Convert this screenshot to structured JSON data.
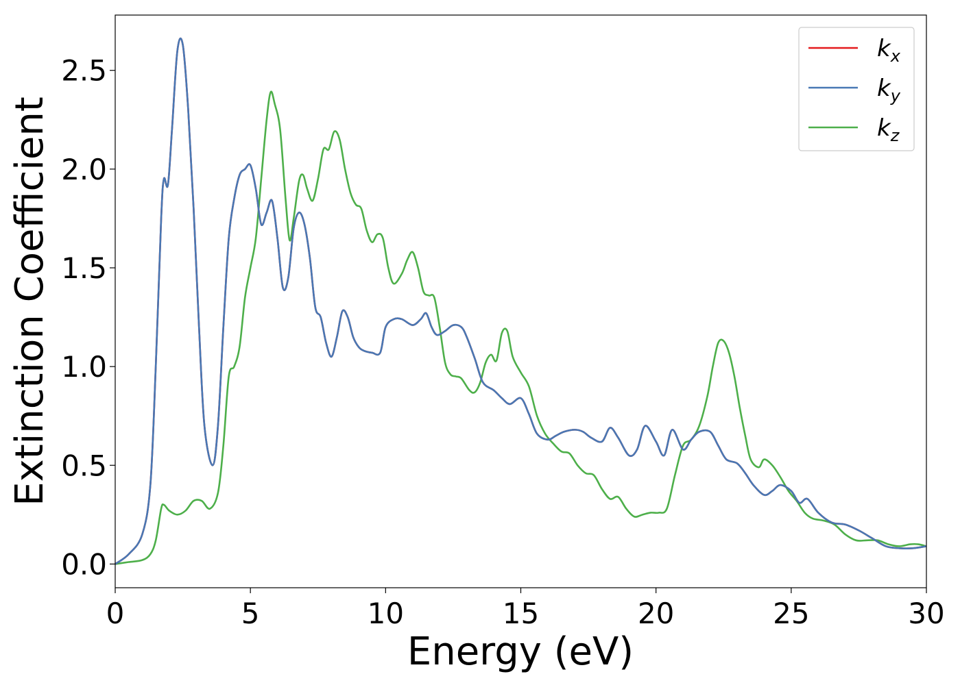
{
  "chart_data": {
    "type": "line",
    "title": "",
    "xlabel": "Energy (eV)",
    "ylabel": "Extinction Coefficient",
    "xlim": [
      0,
      30
    ],
    "ylim": [
      -0.12,
      2.78
    ],
    "xticks": [
      0,
      5,
      10,
      15,
      20,
      25,
      30
    ],
    "yticks": [
      0.0,
      0.5,
      1.0,
      1.5,
      2.0,
      2.5
    ],
    "xtick_labels": [
      "0",
      "5",
      "10",
      "15",
      "20",
      "25",
      "30"
    ],
    "ytick_labels": [
      "0.0",
      "0.5",
      "1.0",
      "1.5",
      "2.0",
      "2.5"
    ],
    "grid": false,
    "legend_position": "top-right",
    "legend_box_color": "#cccccc",
    "series": [
      {
        "name": "k",
        "subscript": "x",
        "color": "#e41a1c",
        "x": [
          0,
          0.5,
          1.0,
          1.3,
          1.5,
          1.7,
          1.8,
          1.95,
          2.1,
          2.3,
          2.5,
          2.7,
          2.9,
          3.1,
          3.3,
          3.6,
          3.8,
          4.0,
          4.2,
          4.4,
          4.6,
          4.8,
          5.0,
          5.2,
          5.4,
          5.6,
          5.8,
          6.0,
          6.2,
          6.4,
          6.6,
          6.8,
          7.0,
          7.2,
          7.4,
          7.6,
          7.8,
          8.0,
          8.2,
          8.4,
          8.6,
          8.8,
          9.0,
          9.2,
          9.5,
          9.8,
          10.0,
          10.3,
          10.6,
          11.0,
          11.3,
          11.5,
          11.7,
          11.9,
          12.2,
          12.5,
          12.8,
          13.0,
          13.3,
          13.6,
          14.0,
          14.3,
          14.6,
          15.0,
          15.3,
          15.6,
          16.0,
          16.3,
          16.6,
          17.0,
          17.3,
          17.6,
          18.0,
          18.3,
          18.6,
          19.0,
          19.3,
          19.6,
          20.0,
          20.3,
          20.6,
          21.0,
          21.3,
          21.6,
          22.0,
          22.3,
          22.6,
          23.0,
          23.3,
          23.6,
          24.0,
          24.3,
          24.6,
          25.0,
          25.3,
          25.6,
          26.0,
          26.5,
          27.0,
          27.5,
          28.0,
          28.5,
          29.0,
          29.5,
          30.0
        ],
        "y": [
          0.0,
          0.05,
          0.15,
          0.4,
          1.0,
          1.75,
          1.95,
          1.92,
          2.2,
          2.6,
          2.63,
          2.3,
          1.8,
          1.2,
          0.7,
          0.5,
          0.7,
          1.2,
          1.65,
          1.85,
          1.97,
          2.0,
          2.02,
          1.9,
          1.72,
          1.78,
          1.84,
          1.65,
          1.4,
          1.45,
          1.7,
          1.78,
          1.72,
          1.55,
          1.3,
          1.25,
          1.12,
          1.05,
          1.15,
          1.28,
          1.25,
          1.15,
          1.1,
          1.08,
          1.07,
          1.07,
          1.2,
          1.24,
          1.24,
          1.21,
          1.24,
          1.27,
          1.2,
          1.16,
          1.18,
          1.21,
          1.2,
          1.15,
          1.04,
          0.92,
          0.88,
          0.84,
          0.81,
          0.84,
          0.76,
          0.66,
          0.63,
          0.65,
          0.67,
          0.68,
          0.67,
          0.64,
          0.62,
          0.69,
          0.64,
          0.55,
          0.58,
          0.7,
          0.62,
          0.55,
          0.68,
          0.58,
          0.63,
          0.67,
          0.67,
          0.6,
          0.53,
          0.51,
          0.46,
          0.4,
          0.35,
          0.37,
          0.4,
          0.37,
          0.31,
          0.33,
          0.26,
          0.21,
          0.2,
          0.17,
          0.13,
          0.09,
          0.08,
          0.08,
          0.09
        ]
      },
      {
        "name": "k",
        "subscript": "y",
        "color": "#4878b4",
        "x": [
          0,
          0.5,
          1.0,
          1.3,
          1.5,
          1.7,
          1.8,
          1.95,
          2.1,
          2.3,
          2.5,
          2.7,
          2.9,
          3.1,
          3.3,
          3.6,
          3.8,
          4.0,
          4.2,
          4.4,
          4.6,
          4.8,
          5.0,
          5.2,
          5.4,
          5.6,
          5.8,
          6.0,
          6.2,
          6.4,
          6.6,
          6.8,
          7.0,
          7.2,
          7.4,
          7.6,
          7.8,
          8.0,
          8.2,
          8.4,
          8.6,
          8.8,
          9.0,
          9.2,
          9.5,
          9.8,
          10.0,
          10.3,
          10.6,
          11.0,
          11.3,
          11.5,
          11.7,
          11.9,
          12.2,
          12.5,
          12.8,
          13.0,
          13.3,
          13.6,
          14.0,
          14.3,
          14.6,
          15.0,
          15.3,
          15.6,
          16.0,
          16.3,
          16.6,
          17.0,
          17.3,
          17.6,
          18.0,
          18.3,
          18.6,
          19.0,
          19.3,
          19.6,
          20.0,
          20.3,
          20.6,
          21.0,
          21.3,
          21.6,
          22.0,
          22.3,
          22.6,
          23.0,
          23.3,
          23.6,
          24.0,
          24.3,
          24.6,
          25.0,
          25.3,
          25.6,
          26.0,
          26.5,
          27.0,
          27.5,
          28.0,
          28.5,
          29.0,
          29.5,
          30.0
        ],
        "y": [
          0.0,
          0.05,
          0.15,
          0.4,
          1.0,
          1.75,
          1.95,
          1.92,
          2.2,
          2.6,
          2.63,
          2.3,
          1.8,
          1.2,
          0.7,
          0.5,
          0.7,
          1.2,
          1.65,
          1.85,
          1.97,
          2.0,
          2.02,
          1.9,
          1.72,
          1.78,
          1.84,
          1.65,
          1.4,
          1.45,
          1.7,
          1.78,
          1.72,
          1.55,
          1.3,
          1.25,
          1.12,
          1.05,
          1.15,
          1.28,
          1.25,
          1.15,
          1.1,
          1.08,
          1.07,
          1.07,
          1.2,
          1.24,
          1.24,
          1.21,
          1.24,
          1.27,
          1.2,
          1.16,
          1.18,
          1.21,
          1.2,
          1.15,
          1.04,
          0.92,
          0.88,
          0.84,
          0.81,
          0.84,
          0.76,
          0.66,
          0.63,
          0.65,
          0.67,
          0.68,
          0.67,
          0.64,
          0.62,
          0.69,
          0.64,
          0.55,
          0.58,
          0.7,
          0.62,
          0.55,
          0.68,
          0.58,
          0.63,
          0.67,
          0.67,
          0.6,
          0.53,
          0.51,
          0.46,
          0.4,
          0.35,
          0.37,
          0.4,
          0.37,
          0.31,
          0.33,
          0.26,
          0.21,
          0.2,
          0.17,
          0.13,
          0.09,
          0.08,
          0.08,
          0.09
        ]
      },
      {
        "name": "k",
        "subscript": "z",
        "color": "#4daf4a",
        "x": [
          0,
          0.5,
          1.0,
          1.3,
          1.5,
          1.7,
          1.8,
          2.0,
          2.3,
          2.6,
          2.9,
          3.2,
          3.5,
          3.8,
          4.0,
          4.2,
          4.4,
          4.6,
          4.8,
          5.0,
          5.2,
          5.4,
          5.6,
          5.75,
          5.9,
          6.1,
          6.3,
          6.45,
          6.6,
          6.8,
          6.95,
          7.1,
          7.3,
          7.5,
          7.7,
          7.9,
          8.1,
          8.3,
          8.5,
          8.7,
          8.9,
          9.1,
          9.3,
          9.5,
          9.7,
          9.9,
          10.1,
          10.3,
          10.6,
          10.8,
          11.0,
          11.2,
          11.4,
          11.6,
          11.8,
          12.0,
          12.2,
          12.4,
          12.6,
          12.8,
          13.1,
          13.3,
          13.5,
          13.7,
          13.9,
          14.1,
          14.3,
          14.5,
          14.7,
          15.0,
          15.3,
          15.6,
          15.9,
          16.2,
          16.5,
          16.8,
          17.1,
          17.4,
          17.7,
          18.0,
          18.3,
          18.6,
          18.9,
          19.2,
          19.5,
          19.8,
          20.1,
          20.4,
          20.7,
          21.0,
          21.3,
          21.6,
          21.9,
          22.1,
          22.3,
          22.5,
          22.7,
          22.9,
          23.1,
          23.3,
          23.5,
          23.8,
          24.0,
          24.3,
          24.6,
          24.9,
          25.2,
          25.5,
          25.8,
          26.2,
          26.6,
          27.0,
          27.4,
          27.8,
          28.2,
          28.6,
          29.0,
          29.4,
          29.7,
          30.0
        ],
        "y": [
          0.0,
          0.01,
          0.02,
          0.05,
          0.12,
          0.28,
          0.3,
          0.27,
          0.25,
          0.27,
          0.32,
          0.32,
          0.28,
          0.36,
          0.6,
          0.95,
          1.0,
          1.1,
          1.35,
          1.5,
          1.65,
          1.95,
          2.25,
          2.39,
          2.33,
          2.2,
          1.85,
          1.64,
          1.75,
          1.94,
          1.97,
          1.9,
          1.84,
          1.95,
          2.1,
          2.1,
          2.19,
          2.15,
          2.0,
          1.88,
          1.82,
          1.8,
          1.69,
          1.63,
          1.67,
          1.65,
          1.5,
          1.42,
          1.47,
          1.54,
          1.58,
          1.5,
          1.38,
          1.36,
          1.35,
          1.2,
          1.02,
          0.96,
          0.95,
          0.94,
          0.88,
          0.87,
          0.92,
          1.02,
          1.06,
          1.03,
          1.17,
          1.18,
          1.05,
          0.97,
          0.9,
          0.75,
          0.66,
          0.61,
          0.57,
          0.56,
          0.5,
          0.46,
          0.45,
          0.38,
          0.33,
          0.34,
          0.28,
          0.24,
          0.25,
          0.26,
          0.26,
          0.28,
          0.45,
          0.6,
          0.63,
          0.7,
          0.85,
          1.0,
          1.12,
          1.13,
          1.07,
          0.95,
          0.79,
          0.65,
          0.53,
          0.49,
          0.53,
          0.5,
          0.44,
          0.37,
          0.32,
          0.26,
          0.23,
          0.22,
          0.2,
          0.15,
          0.12,
          0.12,
          0.12,
          0.1,
          0.09,
          0.1,
          0.1,
          0.09
        ]
      }
    ]
  }
}
